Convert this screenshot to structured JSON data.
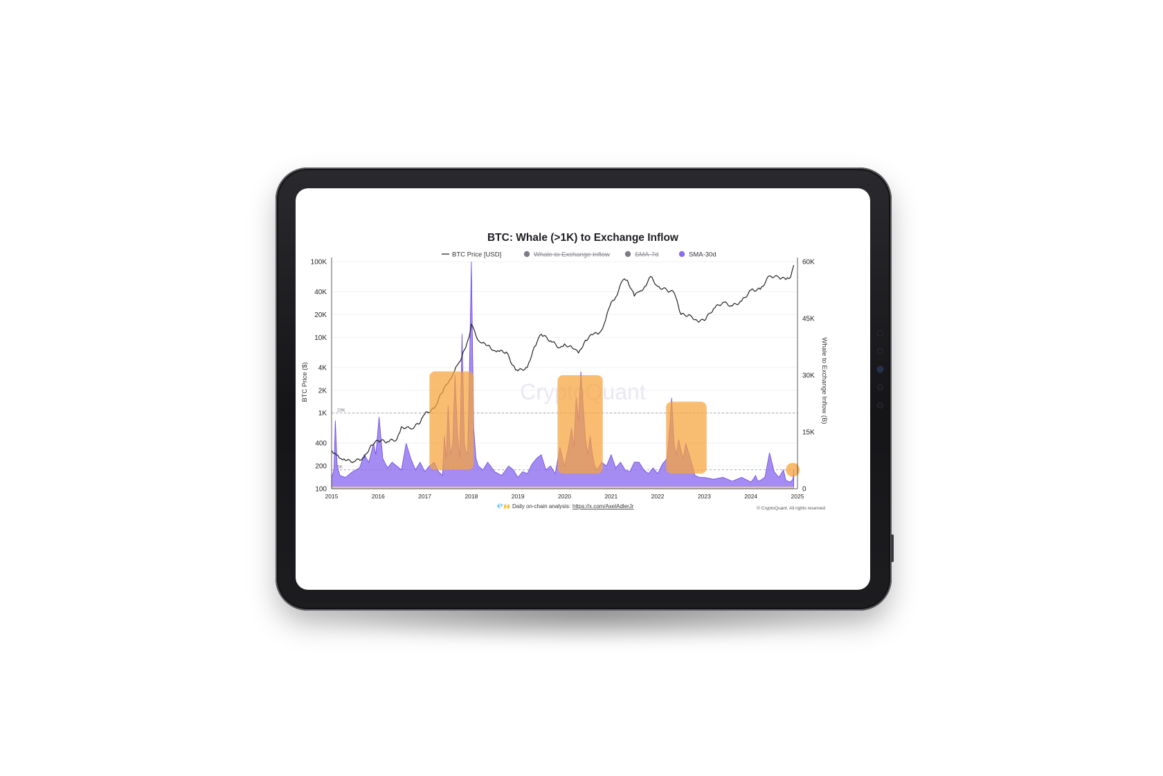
{
  "chart_data": {
    "type": "line",
    "title": "BTC: Whale (>1K) to Exchange Inflow",
    "legend": {
      "placement": "top",
      "entries": [
        {
          "label": "BTC Price [USD]",
          "marker": "line",
          "color": "#222222",
          "active": true
        },
        {
          "label": "Whale to Exchange Inflow",
          "marker": "dot",
          "color": "#7c7c86",
          "active": false
        },
        {
          "label": "SMA-7d",
          "marker": "dot",
          "color": "#7c7c86",
          "active": false
        },
        {
          "label": "SMA-30d",
          "marker": "dot",
          "color": "#8b6cf0",
          "active": true
        }
      ]
    },
    "x_axis": {
      "range": [
        2015.0,
        2025.0
      ],
      "tick_labels": [
        "2015",
        "2016",
        "2017",
        "2018",
        "2019",
        "2020",
        "2021",
        "2022",
        "2023",
        "2024",
        "2025"
      ]
    },
    "y_left": {
      "label": "BTC Price ($)",
      "scale": "log",
      "range": [
        100,
        100000
      ],
      "ticks": [
        100,
        200,
        400,
        1000,
        2000,
        4000,
        10000,
        20000,
        40000,
        100000
      ],
      "tick_labels": [
        "100",
        "200",
        "400",
        "1K",
        "2K",
        "4K",
        "10K",
        "20K",
        "40K",
        "100K"
      ]
    },
    "y_right": {
      "label": "Whale to Exchange Inflow (B)",
      "scale": "linear",
      "range": [
        0,
        60000
      ],
      "ticks": [
        0,
        15000,
        30000,
        45000,
        60000
      ],
      "tick_labels": [
        "0",
        "15K",
        "30K",
        "45K",
        "60K"
      ]
    },
    "reference_lines": [
      {
        "axis": "right",
        "value": 20000,
        "label": "20K",
        "style": "dashed"
      },
      {
        "axis": "right",
        "value": 5000,
        "label": "5K",
        "style": "dashed"
      }
    ],
    "series": [
      {
        "name": "BTC Price [USD]",
        "axis": "left",
        "kind": "line",
        "color": "#222222",
        "x": [
          2015.0,
          2015.1,
          2015.2,
          2015.3,
          2015.5,
          2015.7,
          2015.85,
          2016.0,
          2016.2,
          2016.4,
          2016.5,
          2016.7,
          2016.9,
          2017.0,
          2017.2,
          2017.35,
          2017.5,
          2017.6,
          2017.7,
          2017.8,
          2017.85,
          2017.95,
          2018.0,
          2018.1,
          2018.2,
          2018.35,
          2018.5,
          2018.6,
          2018.75,
          2018.88,
          2018.95,
          2019.0,
          2019.2,
          2019.35,
          2019.5,
          2019.7,
          2019.9,
          2020.0,
          2020.2,
          2020.3,
          2020.45,
          2020.6,
          2020.75,
          2020.85,
          2021.0,
          2021.1,
          2021.25,
          2021.35,
          2021.5,
          2021.6,
          2021.75,
          2021.85,
          2022.0,
          2022.2,
          2022.35,
          2022.5,
          2022.7,
          2022.85,
          2023.0,
          2023.2,
          2023.4,
          2023.6,
          2023.8,
          2024.0,
          2024.2,
          2024.4,
          2024.6,
          2024.75,
          2024.85,
          2024.92
        ],
        "y": [
          320,
          280,
          250,
          235,
          230,
          260,
          380,
          430,
          420,
          450,
          660,
          620,
          740,
          970,
          1150,
          1800,
          2500,
          3200,
          4300,
          5600,
          6800,
          10000,
          15000,
          10500,
          8500,
          7800,
          6700,
          6500,
          6400,
          4300,
          3700,
          3600,
          4000,
          7500,
          11000,
          9000,
          7300,
          8200,
          7000,
          6200,
          9200,
          10800,
          11500,
          15000,
          29000,
          34000,
          57000,
          57000,
          35000,
          40000,
          48000,
          64000,
          47000,
          42000,
          39000,
          20000,
          19500,
          16500,
          16700,
          24000,
          29000,
          26000,
          30000,
          42000,
          43000,
          65000,
          62000,
          58000,
          62000,
          90000
        ]
      },
      {
        "name": "SMA-30d",
        "axis": "right",
        "kind": "area",
        "color": "#8b6cf0",
        "x": [
          2015.0,
          2015.05,
          2015.08,
          2015.12,
          2015.18,
          2015.3,
          2015.45,
          2015.6,
          2015.7,
          2015.8,
          2015.9,
          2015.95,
          2016.02,
          2016.1,
          2016.2,
          2016.3,
          2016.5,
          2016.6,
          2016.7,
          2016.8,
          2016.9,
          2017.0,
          2017.1,
          2017.2,
          2017.3,
          2017.38,
          2017.42,
          2017.46,
          2017.5,
          2017.55,
          2017.6,
          2017.65,
          2017.7,
          2017.75,
          2017.8,
          2017.85,
          2017.88,
          2017.92,
          2017.95,
          2018.0,
          2018.05,
          2018.1,
          2018.15,
          2018.25,
          2018.35,
          2018.5,
          2018.65,
          2018.8,
          2018.9,
          2019.0,
          2019.1,
          2019.2,
          2019.3,
          2019.4,
          2019.5,
          2019.6,
          2019.7,
          2019.8,
          2019.9,
          2020.0,
          2020.05,
          2020.1,
          2020.15,
          2020.2,
          2020.25,
          2020.3,
          2020.35,
          2020.4,
          2020.45,
          2020.5,
          2020.55,
          2020.6,
          2020.65,
          2020.7,
          2020.8,
          2020.9,
          2021.0,
          2021.1,
          2021.2,
          2021.3,
          2021.4,
          2021.5,
          2021.6,
          2021.7,
          2021.8,
          2021.9,
          2022.0,
          2022.1,
          2022.2,
          2022.25,
          2022.3,
          2022.35,
          2022.4,
          2022.45,
          2022.5,
          2022.55,
          2022.6,
          2022.7,
          2022.8,
          2022.9,
          2023.0,
          2023.2,
          2023.4,
          2023.6,
          2023.8,
          2024.0,
          2024.05,
          2024.1,
          2024.15,
          2024.2,
          2024.3,
          2024.4,
          2024.5,
          2024.6,
          2024.7,
          2024.75,
          2024.8,
          2024.85,
          2024.9,
          2024.92
        ],
        "y": [
          3000,
          5000,
          18000,
          6000,
          3500,
          3000,
          4500,
          5500,
          9000,
          7000,
          12000,
          9000,
          19000,
          8000,
          5500,
          7000,
          5000,
          12000,
          8000,
          5000,
          7000,
          4500,
          6000,
          7000,
          4500,
          3500,
          14000,
          8000,
          22000,
          9000,
          12000,
          30000,
          15000,
          8000,
          41000,
          12000,
          10000,
          9000,
          25000,
          60000,
          16000,
          8000,
          6000,
          5000,
          7000,
          4500,
          3500,
          6000,
          5000,
          3000,
          4500,
          4000,
          6500,
          8000,
          9000,
          5000,
          6000,
          4000,
          11000,
          6000,
          9000,
          12000,
          16000,
          11000,
          24000,
          18000,
          31000,
          22000,
          13000,
          9000,
          14000,
          9000,
          6000,
          5000,
          7000,
          6000,
          9000,
          5500,
          7000,
          5000,
          4500,
          7000,
          7000,
          5000,
          4000,
          5500,
          4000,
          6500,
          8000,
          15000,
          24000,
          12000,
          9000,
          13000,
          10000,
          8000,
          12000,
          8000,
          3500,
          3000,
          3000,
          2500,
          3000,
          2000,
          3000,
          1800,
          2500,
          3500,
          2000,
          2200,
          3000,
          9500,
          4500,
          3000,
          5000,
          2200,
          2000,
          1800,
          2500,
          5000
        ]
      }
    ],
    "highlights": [
      {
        "x_start": 2017.1,
        "x_end": 2018.05,
        "y_top": 31000,
        "y_bottom": 5000,
        "color": "#f7a43a"
      },
      {
        "x_start": 2019.85,
        "x_end": 2020.82,
        "y_top": 30000,
        "y_bottom": 4000,
        "color": "#f7a43a"
      },
      {
        "x_start": 2022.18,
        "x_end": 2023.05,
        "y_top": 23000,
        "y_bottom": 4000,
        "color": "#f7a43a"
      },
      {
        "shape": "circle",
        "x": 2024.9,
        "y": 5000,
        "color": "#f7a43a"
      }
    ],
    "watermark": "CryptoQuant",
    "footer": {
      "emoji": "💎🙌",
      "text": "Daily on-chain analysis:",
      "link": "https://x.com/AxelAdlerJr",
      "copyright": "© CryptoQuant. All rights reserved"
    }
  }
}
